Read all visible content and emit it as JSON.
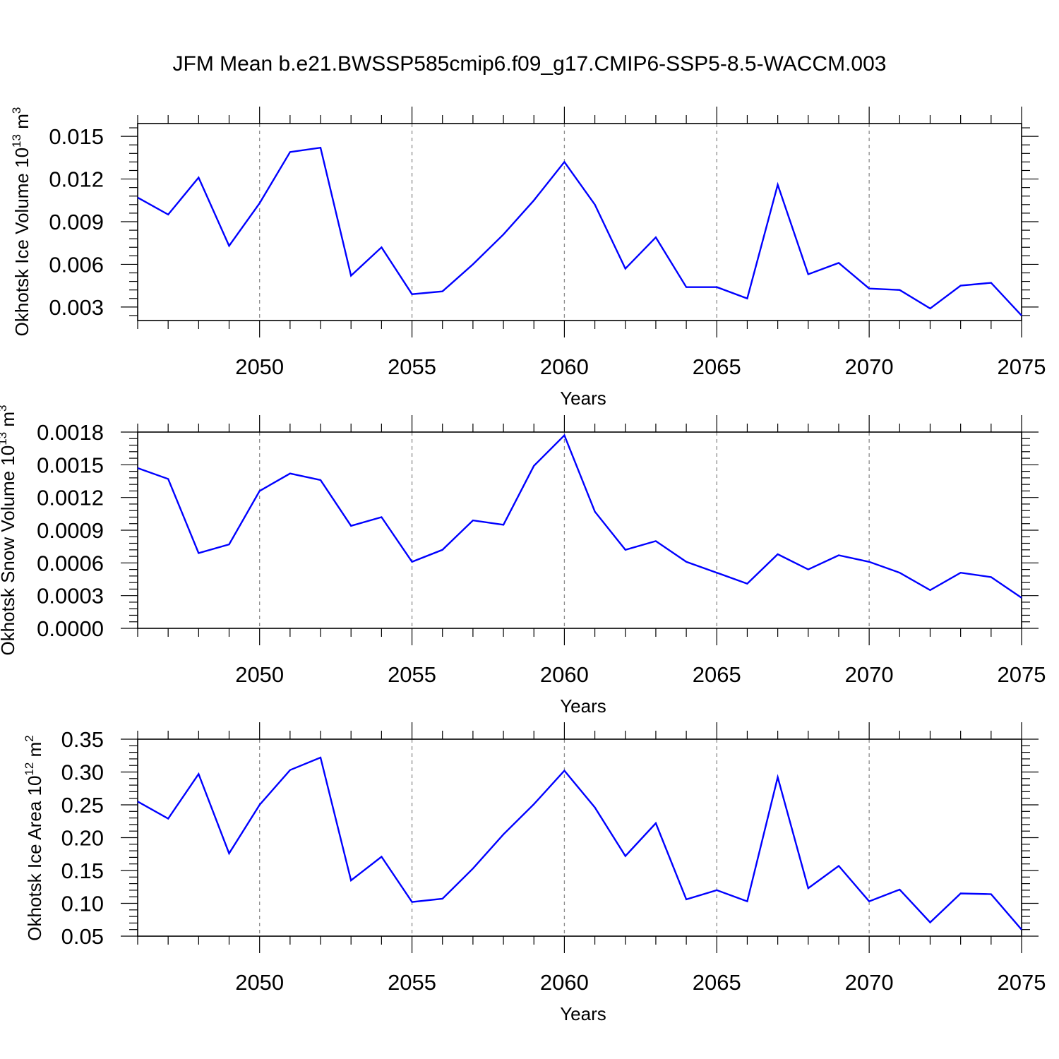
{
  "title": "JFM Mean b.e21.BWSSP585cmip6.f09_g17.CMIP6-SSP5-8.5-WACCM.003",
  "colors": {
    "line": "#0000ff",
    "axis": "#000000",
    "grid": "#8c8c8c"
  },
  "chart_data": [
    {
      "type": "line",
      "ylabel": "Okhotsk Ice Volume 10",
      "ylabel_exp": "13",
      "ylabel_unit": " m",
      "ylabel_unit_exp": "3",
      "xlabel": "Years",
      "xlim": [
        2046,
        2075
      ],
      "ylim": [
        0.00205,
        0.0159
      ],
      "yticks": [
        0.003,
        0.006,
        0.009,
        0.012,
        0.015
      ],
      "ytick_labels": [
        "0.003",
        "0.006",
        "0.009",
        "0.012",
        "0.015"
      ],
      "xticks": [
        2050,
        2055,
        2060,
        2065,
        2070,
        2075
      ],
      "xtick_labels": [
        "2050",
        "2055",
        "2060",
        "2065",
        "2070",
        "2075"
      ],
      "grid": "vertical dashed at labeled years",
      "series": [
        {
          "x": [
            2046,
            2047,
            2048,
            2049,
            2050,
            2051,
            2052,
            2053,
            2054,
            2055,
            2056,
            2057,
            2058,
            2059,
            2060,
            2061,
            2062,
            2063,
            2064,
            2065,
            2066,
            2067,
            2068,
            2069,
            2070,
            2071,
            2072,
            2073,
            2074,
            2075
          ],
          "values": [
            0.0107,
            0.0095,
            0.0121,
            0.0073,
            0.0103,
            0.0139,
            0.0142,
            0.0052,
            0.0072,
            0.0039,
            0.0041,
            0.006,
            0.0081,
            0.0105,
            0.0132,
            0.0102,
            0.0057,
            0.0079,
            0.0044,
            0.0044,
            0.0036,
            0.0116,
            0.0053,
            0.0061,
            0.0043,
            0.0042,
            0.0029,
            0.0045,
            0.0047,
            0.0024
          ]
        }
      ]
    },
    {
      "type": "line",
      "ylabel": "Okhotsk Snow Volume 10",
      "ylabel_exp": "13",
      "ylabel_unit": " m",
      "ylabel_unit_exp": "3",
      "xlabel": "Years",
      "xlim": [
        2046,
        2075
      ],
      "ylim": [
        0.0,
        0.0018
      ],
      "yticks": [
        0.0,
        0.0003,
        0.0006,
        0.0009,
        0.0012,
        0.0015,
        0.0018
      ],
      "ytick_labels": [
        "0.0000",
        "0.0003",
        "0.0006",
        "0.0009",
        "0.0012",
        "0.0015",
        "0.0018"
      ],
      "xticks": [
        2050,
        2055,
        2060,
        2065,
        2070,
        2075
      ],
      "xtick_labels": [
        "2050",
        "2055",
        "2060",
        "2065",
        "2070",
        "2075"
      ],
      "grid": "vertical dashed at labeled years",
      "series": [
        {
          "x": [
            2046,
            2047,
            2048,
            2049,
            2050,
            2051,
            2052,
            2053,
            2054,
            2055,
            2056,
            2057,
            2058,
            2059,
            2060,
            2061,
            2062,
            2063,
            2064,
            2065,
            2066,
            2067,
            2068,
            2069,
            2070,
            2071,
            2072,
            2073,
            2074,
            2075
          ],
          "values": [
            0.00147,
            0.00137,
            0.00069,
            0.00077,
            0.00126,
            0.00142,
            0.00136,
            0.00094,
            0.00102,
            0.00061,
            0.00072,
            0.00099,
            0.00095,
            0.00149,
            0.00177,
            0.00107,
            0.00072,
            0.0008,
            0.00061,
            0.00051,
            0.00041,
            0.00068,
            0.00054,
            0.00067,
            0.00061,
            0.00051,
            0.00035,
            0.00051,
            0.00047,
            0.00028
          ]
        }
      ]
    },
    {
      "type": "line",
      "ylabel": "Okhotsk Ice Area 10",
      "ylabel_exp": "12",
      "ylabel_unit": " m",
      "ylabel_unit_exp": "2",
      "xlabel": "Years",
      "xlim": [
        2046,
        2075
      ],
      "ylim": [
        0.05,
        0.35
      ],
      "yticks": [
        0.05,
        0.1,
        0.15,
        0.2,
        0.25,
        0.3,
        0.35
      ],
      "ytick_labels": [
        "0.05",
        "0.10",
        "0.15",
        "0.20",
        "0.25",
        "0.30",
        "0.35"
      ],
      "xticks": [
        2050,
        2055,
        2060,
        2065,
        2070,
        2075
      ],
      "xtick_labels": [
        "2050",
        "2055",
        "2060",
        "2065",
        "2070",
        "2075"
      ],
      "grid": "vertical dashed at labeled years",
      "series": [
        {
          "x": [
            2046,
            2047,
            2048,
            2049,
            2050,
            2051,
            2052,
            2053,
            2054,
            2055,
            2056,
            2057,
            2058,
            2059,
            2060,
            2061,
            2062,
            2063,
            2064,
            2065,
            2066,
            2067,
            2068,
            2069,
            2070,
            2071,
            2072,
            2073,
            2074,
            2075
          ],
          "values": [
            0.255,
            0.229,
            0.297,
            0.176,
            0.25,
            0.303,
            0.322,
            0.135,
            0.171,
            0.102,
            0.107,
            0.153,
            0.205,
            0.251,
            0.302,
            0.246,
            0.172,
            0.222,
            0.106,
            0.12,
            0.103,
            0.292,
            0.123,
            0.157,
            0.103,
            0.121,
            0.071,
            0.115,
            0.114,
            0.06
          ]
        }
      ]
    }
  ]
}
